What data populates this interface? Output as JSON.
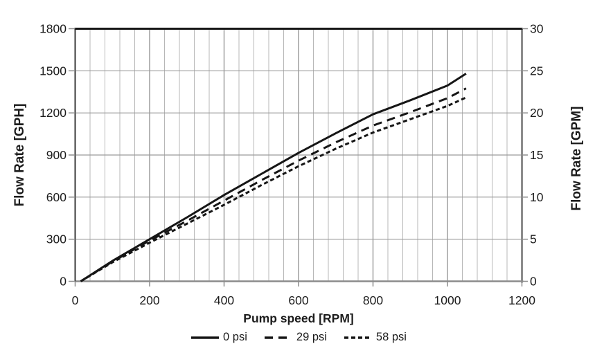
{
  "chart_data": {
    "type": "line",
    "title": "",
    "xlabel": "Pump speed [RPM]",
    "ylabel_left": "Flow Rate [GPH]",
    "ylabel_right": "Flow Rate [GPM]",
    "xlim": [
      0,
      1200
    ],
    "x_ticks": [
      0,
      200,
      400,
      600,
      800,
      1000,
      1200
    ],
    "x_minor_step": 40,
    "ylim_left": [
      0,
      1800
    ],
    "y_ticks_left": [
      0,
      300,
      600,
      900,
      1200,
      1500,
      1800
    ],
    "ylim_right": [
      0,
      30
    ],
    "y_ticks_right": [
      0,
      5,
      10,
      15,
      20,
      25,
      30
    ],
    "grid": true,
    "legend_position": "bottom",
    "x": [
      15,
      100,
      200,
      300,
      400,
      500,
      600,
      700,
      800,
      900,
      1000,
      1050
    ],
    "series": [
      {
        "name": "0 psi",
        "style": "solid",
        "gph": [
          0,
          145,
          300,
          455,
          615,
          765,
          915,
          1055,
          1190,
          1290,
          1395,
          1480
        ]
      },
      {
        "name": "29 psi",
        "style": "dashed",
        "gph": [
          0,
          140,
          290,
          430,
          575,
          720,
          860,
          990,
          1110,
          1205,
          1305,
          1375
        ]
      },
      {
        "name": "58 psi",
        "style": "short-dashed",
        "gph": [
          0,
          135,
          275,
          410,
          545,
          685,
          820,
          945,
          1060,
          1155,
          1250,
          1310
        ]
      }
    ],
    "colors": {
      "line": "#161616",
      "grid_minor": "#b7b7b7",
      "grid_major": "#989898",
      "grid_horizontal": "#9a9a9a",
      "axis_gray": "#8c8c8c",
      "axis_dark": "#3a3a3a",
      "border_top": "#161616",
      "text": "#1c1c1c",
      "background": "#ffffff"
    }
  }
}
